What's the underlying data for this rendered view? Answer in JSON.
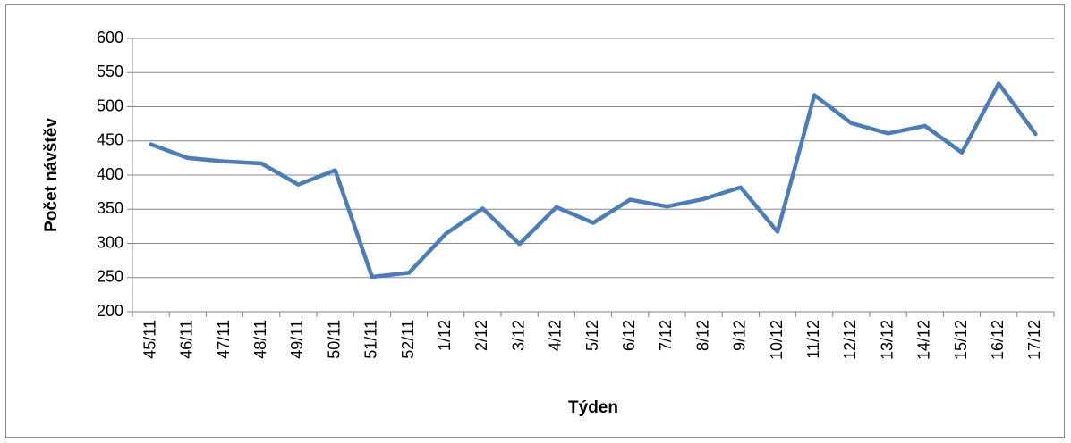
{
  "chart_data": {
    "type": "line",
    "x_label": "Týden",
    "y_label": "Počet návštěv",
    "categories": [
      "45/11",
      "46/11",
      "47/11",
      "48/11",
      "49/11",
      "50/11",
      "51/11",
      "52/11",
      "1/12",
      "2/12",
      "3/12",
      "4/12",
      "5/12",
      "6/12",
      "7/12",
      "8/12",
      "9/12",
      "10/12",
      "11/12",
      "12/12",
      "13/12",
      "14/12",
      "15/12",
      "16/12",
      "17/12"
    ],
    "series": [
      {
        "color": "#4a7ebb",
        "values": [
          445,
          425,
          420,
          417,
          386,
          407,
          251,
          257,
          314,
          351,
          299,
          353,
          330,
          364,
          354,
          365,
          382,
          317,
          517,
          476,
          461,
          472,
          433,
          534,
          460
        ]
      }
    ],
    "ylim": [
      200,
      600
    ],
    "yticks": [
      200,
      250,
      300,
      350,
      400,
      450,
      500,
      550,
      600
    ],
    "grid": true
  }
}
